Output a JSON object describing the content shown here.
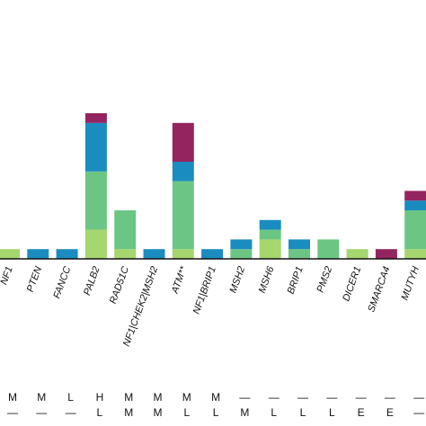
{
  "colors": {
    "light_green": "#a6d66e",
    "green": "#6cc683",
    "blue": "#1a8cc0",
    "purple": "#94245f",
    "axis": "#111111"
  },
  "chart_data": {
    "type": "bar",
    "stacked": true,
    "title": "",
    "xlabel": "",
    "ylabel": "",
    "ylim": [
      0,
      30
    ],
    "grid": false,
    "legend": "none",
    "categories": [
      "NF1",
      "PTEN",
      "FANCC",
      "PALB2",
      "RAD51C",
      "NF1|CHEK2|MSH2",
      "ATM**",
      "NF1|BRIP1",
      "MSH2",
      "MSH6",
      "BRIP1",
      "PMS2",
      "DICER1",
      "SMARCA4",
      "MUTYH"
    ],
    "series": [
      {
        "color_key": "light_green",
        "values": [
          2,
          0,
          0,
          6,
          2,
          0,
          2,
          0,
          0,
          4,
          0,
          0,
          2,
          0,
          2
        ]
      },
      {
        "color_key": "green",
        "values": [
          0,
          0,
          0,
          12,
          8,
          0,
          14,
          0,
          2,
          2,
          2,
          4,
          0,
          0,
          8
        ]
      },
      {
        "color_key": "blue",
        "values": [
          0,
          2,
          2,
          10,
          0,
          2,
          4,
          2,
          2,
          2,
          2,
          0,
          0,
          0,
          2
        ]
      },
      {
        "color_key": "purple",
        "values": [
          0,
          0,
          0,
          2,
          0,
          0,
          8,
          0,
          0,
          0,
          0,
          0,
          0,
          2,
          2
        ]
      }
    ],
    "row1": [
      "M",
      "M",
      "L",
      "H",
      "M",
      "M",
      "M",
      "M",
      "—",
      "—",
      "—",
      "—",
      "—",
      "—",
      "—"
    ],
    "row2": [
      "—",
      "—",
      "—",
      "L",
      "M",
      "M",
      "L",
      "L",
      "M",
      "L",
      "L",
      "L",
      "E",
      "E",
      "—"
    ]
  }
}
